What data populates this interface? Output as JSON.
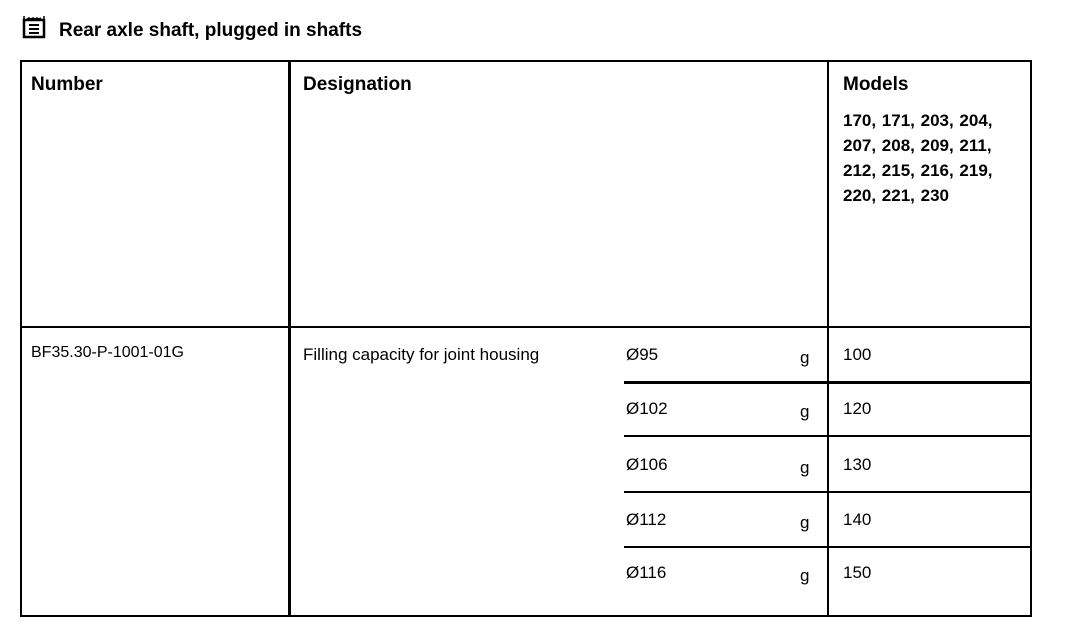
{
  "title": "Rear axle shaft, plugged in shafts",
  "title_icon": "document-list-icon",
  "table": {
    "headers": {
      "number": "Number",
      "designation": "Designation",
      "models": "Models"
    },
    "models_list": "170, 171, 203, 204, 207, 208, 209, 211, 212, 215, 216, 219, 220, 221, 230",
    "number": "BF35.30-P-1001-01G",
    "designation": "Filling capacity for joint housing",
    "rows": [
      {
        "size": "Ø95",
        "unit": "g",
        "value": "100"
      },
      {
        "size": "Ø102",
        "unit": "g",
        "value": "120"
      },
      {
        "size": "Ø106",
        "unit": "g",
        "value": "130"
      },
      {
        "size": "Ø112",
        "unit": "g",
        "value": "140"
      },
      {
        "size": "Ø116",
        "unit": "g",
        "value": "150"
      }
    ]
  }
}
